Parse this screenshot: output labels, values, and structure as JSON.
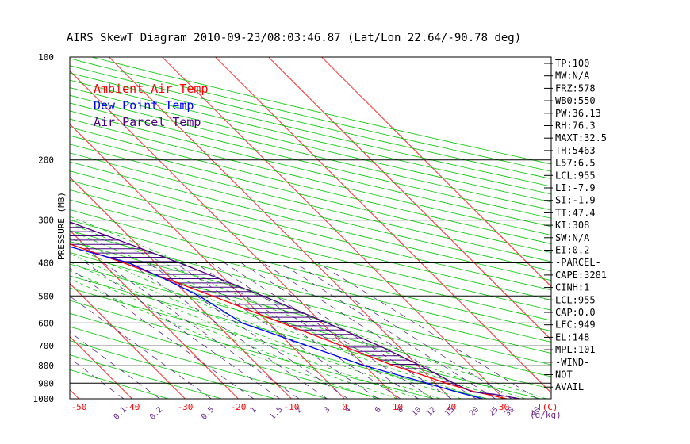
{
  "chart_data": {
    "type": "line",
    "title": "AIRS SkewT Diagram 2010-09-23/08:03:46.87 (Lat/Lon 22.64/-90.78 deg)",
    "ylabel": "PRESSURE (MB)",
    "y_scale": "log",
    "ylim": [
      1000,
      100
    ],
    "pressure_ticks": [
      100,
      200,
      300,
      400,
      500,
      600,
      700,
      800,
      900,
      1000
    ],
    "top_temp_ticks": [
      "-120",
      "-110",
      "-100",
      "-90",
      "-80",
      "-70",
      "-60",
      "-50",
      "-40"
    ],
    "bottom_temp_ticks": [
      "-50",
      "-40",
      "-30",
      "-20",
      "-10",
      "0",
      "10",
      "20",
      "30"
    ],
    "bottom_temp_unit": "T(C)",
    "mixing_ratio_ticks": [
      "0.1",
      "0.2",
      "0.5",
      "1",
      "1.5",
      "2",
      "3",
      "4",
      "6",
      "8",
      "10",
      "12",
      "15",
      "20",
      "25",
      "30",
      "40"
    ],
    "mixing_ratio_unit": "(g/kg)",
    "legend": [
      {
        "label": "Ambient Air Temp",
        "color": "#ff0000"
      },
      {
        "label": "Dew Point Temp",
        "color": "#0000ff"
      },
      {
        "label": "Air Parcel Temp",
        "color": "#4b0082"
      }
    ],
    "grid": true,
    "series": [
      {
        "name": "Ambient Air Temp",
        "color": "#ff0000",
        "points": [
          [
            1000,
            30.5
          ],
          [
            950,
            25.5
          ],
          [
            900,
            22
          ],
          [
            850,
            19
          ],
          [
            800,
            15.5
          ],
          [
            700,
            9.5
          ],
          [
            600,
            2.5
          ],
          [
            500,
            -5.5
          ],
          [
            400,
            -16
          ],
          [
            300,
            -31
          ],
          [
            250,
            -41.5
          ],
          [
            200,
            -53
          ],
          [
            170,
            -61
          ],
          [
            150,
            -66
          ],
          [
            130,
            -70
          ],
          [
            115,
            -73
          ],
          [
            100,
            -76
          ]
        ]
      },
      {
        "name": "Dew Point Temp",
        "color": "#0000ff",
        "points": [
          [
            1000,
            26
          ],
          [
            950,
            22
          ],
          [
            900,
            18.5
          ],
          [
            800,
            10
          ],
          [
            700,
            3
          ],
          [
            600,
            -5
          ],
          [
            500,
            -8
          ],
          [
            450,
            -11
          ],
          [
            400,
            -15
          ],
          [
            350,
            -25
          ],
          [
            300,
            -40
          ],
          [
            280,
            -46
          ],
          [
            250,
            -60
          ],
          [
            230,
            -63
          ],
          [
            200,
            -67
          ],
          [
            170,
            -66
          ],
          [
            150,
            -65
          ],
          [
            130,
            -63
          ],
          [
            115,
            -62
          ],
          [
            100,
            -60
          ]
        ]
      },
      {
        "name": "Air Parcel Temp",
        "color": "#4b0082",
        "points": [
          [
            1000,
            33
          ],
          [
            970,
            29
          ],
          [
            955,
            25.3
          ],
          [
            900,
            23.5
          ],
          [
            800,
            20.5
          ],
          [
            700,
            16.5
          ],
          [
            600,
            11
          ],
          [
            500,
            4
          ],
          [
            400,
            -5.5
          ],
          [
            300,
            -19
          ],
          [
            250,
            -28.5
          ],
          [
            200,
            -40.5
          ],
          [
            170,
            -50
          ],
          [
            150,
            -58
          ],
          [
            130,
            -67
          ],
          [
            115,
            -74
          ],
          [
            100,
            -80
          ]
        ]
      }
    ],
    "indices": [
      "TP:100",
      "MW:N/A",
      "FRZ:578",
      "WB0:550",
      "PW:36.13",
      "RH:76.3",
      "MAXT:32.5",
      "TH:5463",
      "L57:6.5",
      "LCL:955",
      "LI:-7.9",
      "SI:-1.9",
      "TT:47.4",
      "KI:308",
      "SW:N/A",
      "EI:0.2",
      "-PARCEL-",
      "CAPE:3281",
      "CINH:1",
      "LCL:955",
      "CAP:0.0",
      "LFC:949",
      "EL:148",
      "MPL:101",
      "-WIND-",
      "NOT",
      "AVAIL"
    ],
    "colors": {
      "ambient": "#ff0000",
      "dewpoint": "#0000ff",
      "parcel": "#4b0082",
      "isotherm": "#ff0000",
      "dry_adiabat": "#00c800",
      "moist_adiabat": "#00c800",
      "mixing_ratio": "#5a2d8c",
      "isobar": "#000000",
      "axis_text": "#ff0000",
      "mixing_text": "#6a2c91",
      "hatch": "#4b0082"
    }
  }
}
